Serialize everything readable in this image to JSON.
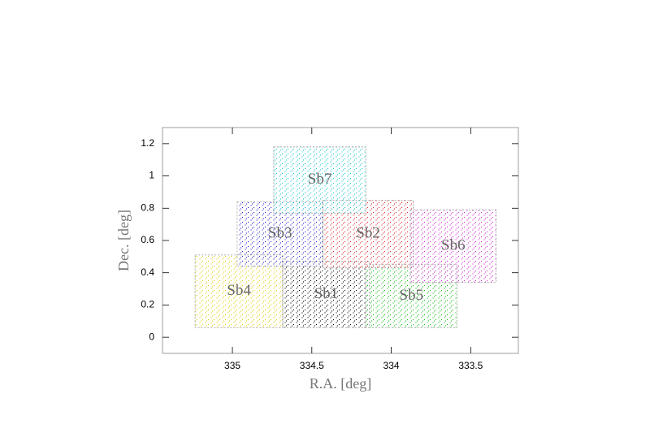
{
  "chart_data": {
    "type": "fields",
    "xlabel": "R.A. [deg]",
    "ylabel": "Dec. [deg]",
    "xlim": [
      335.44,
      333.2
    ],
    "ylim": [
      -0.1,
      1.3
    ],
    "xticks": [
      335,
      334.5,
      334,
      333.5
    ],
    "yticks": [
      0,
      0.2,
      0.4,
      0.6,
      0.8,
      1,
      1.2
    ],
    "fields": [
      {
        "name": "Sb4",
        "color": "#e0cc00",
        "ra": [
          335.235,
          334.683
        ],
        "dec": [
          0.06,
          0.51
        ]
      },
      {
        "name": "Sb1",
        "color": "#000000",
        "ra": [
          334.683,
          334.137
        ],
        "dec": [
          0.06,
          0.47
        ]
      },
      {
        "name": "Sb5",
        "color": "#10c010",
        "ra": [
          334.16,
          333.587
        ],
        "dec": [
          0.06,
          0.45
        ]
      },
      {
        "name": "Sb3",
        "color": "#2020d0",
        "ra": [
          334.97,
          334.43
        ],
        "dec": [
          0.44,
          0.84
        ]
      },
      {
        "name": "Sb2",
        "color": "#e02020",
        "ra": [
          334.43,
          333.862
        ],
        "dec": [
          0.43,
          0.85
        ]
      },
      {
        "name": "Sb6",
        "color": "#d020d0",
        "ra": [
          333.88,
          333.34
        ],
        "dec": [
          0.34,
          0.79
        ]
      },
      {
        "name": "Sb7",
        "color": "#10c8d0",
        "ra": [
          334.74,
          334.16
        ],
        "dec": [
          0.77,
          1.18
        ]
      }
    ]
  }
}
